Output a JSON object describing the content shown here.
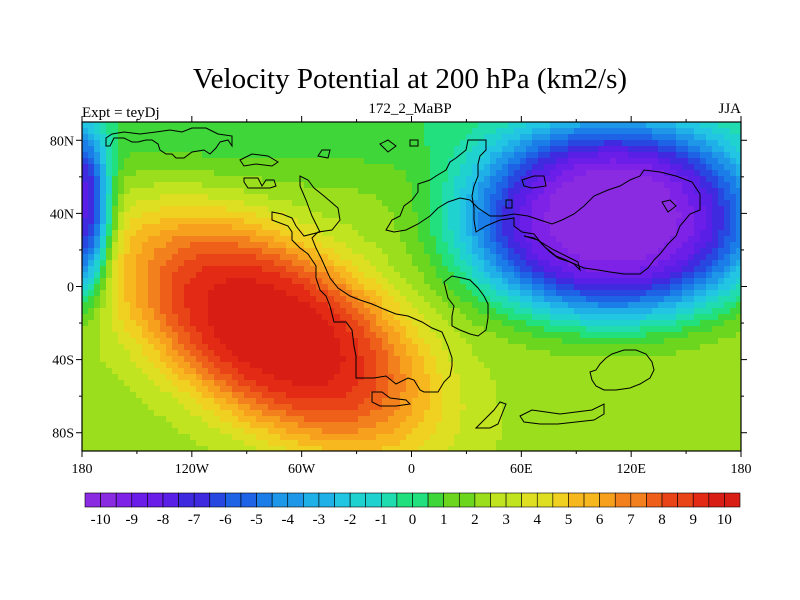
{
  "title": "Velocity Potential at 200 hPa (km2/s)",
  "left_label": "Expt = teyDj",
  "center_label": "172_2_MaBP",
  "right_label": "JJA",
  "x_ticks": [
    "180",
    "120W",
    "60W",
    "0",
    "60E",
    "120E",
    "180"
  ],
  "y_ticks": [
    "80N",
    "40N",
    "0",
    "40S",
    "80S"
  ],
  "colorbar": {
    "labels": [
      "-10",
      "-9",
      "-8",
      "-7",
      "-6",
      "-5",
      "-4",
      "-3",
      "-2",
      "-1",
      "0",
      "1",
      "2",
      "3",
      "4",
      "5",
      "6",
      "7",
      "8",
      "9",
      "10"
    ],
    "min": -10.5,
    "max": 10.5,
    "step": 0.5
  },
  "field": {
    "variable": "Velocity Potential",
    "level": "200 hPa",
    "units": "km2/s",
    "lon_range": [
      -180,
      180
    ],
    "lat_range": [
      -90,
      90
    ],
    "background_value": 2.5,
    "max_center": {
      "lon": -75,
      "lat": -25,
      "value": 10.5
    },
    "min_center": {
      "lon": 110,
      "lat": 35,
      "value": -10.5
    },
    "secondary_min": {
      "lon": -180,
      "lat": 40,
      "value": -8
    }
  },
  "colors": {
    "palette": [
      "#8a2be2",
      "#7d22e6",
      "#6a1ee8",
      "#5a1fe6",
      "#3f2ae0",
      "#2847e0",
      "#1e62e6",
      "#1a7de8",
      "#1e97e8",
      "#20b0e8",
      "#22c5e2",
      "#20d2cf",
      "#20dcae",
      "#22e07e",
      "#3ed638",
      "#6cd61e",
      "#9ade1e",
      "#c0e420",
      "#dede22",
      "#f0d020",
      "#f6b81e",
      "#f6a01e",
      "#f2801c",
      "#ee601a",
      "#e84418",
      "#e22a14",
      "#d81e14"
    ],
    "coast": "#000000",
    "frame": "#000000"
  }
}
